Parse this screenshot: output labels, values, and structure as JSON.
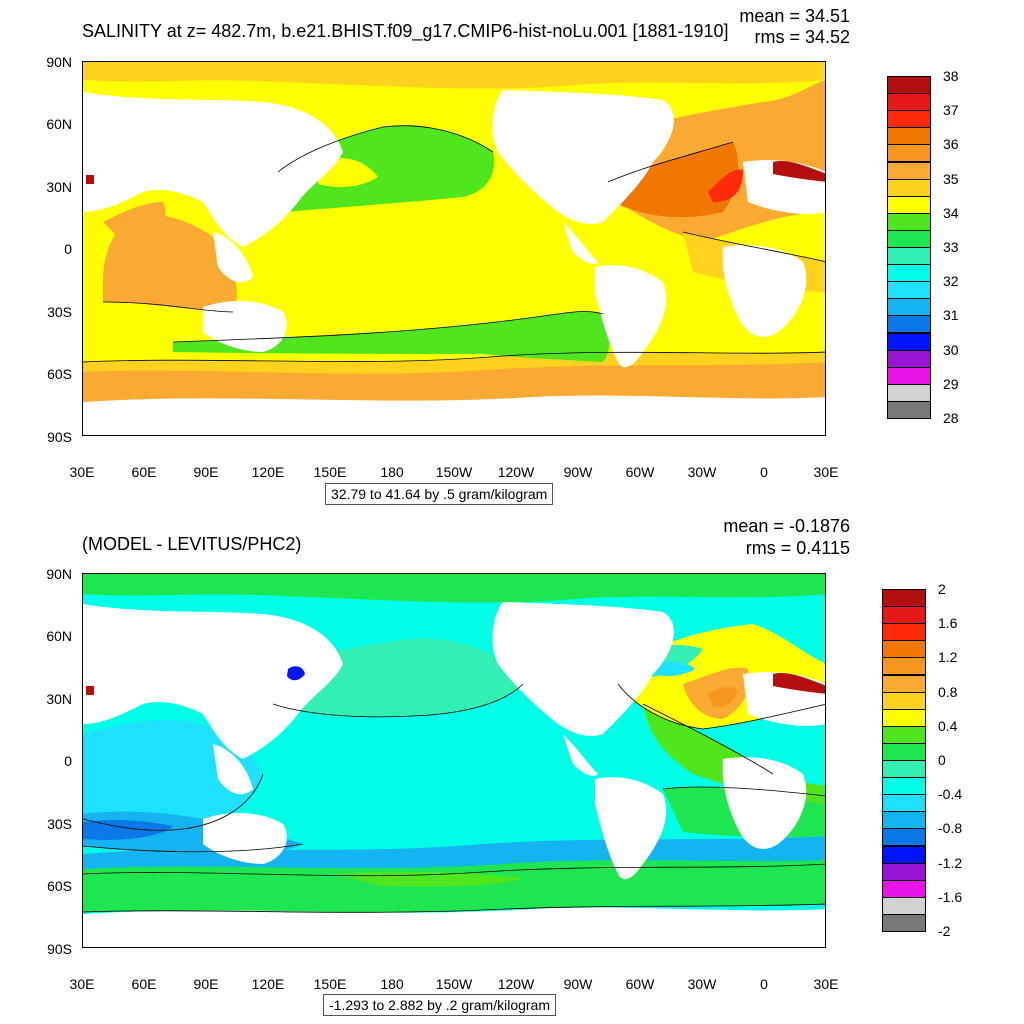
{
  "top": {
    "title": "SALINITY at z= 482.7m, b.e21.BHIST.f09_g17.CMIP6-hist-noLu.001 [1881-1910]",
    "mean": "mean = 34.51",
    "rms": "rms = 34.52",
    "footer": "32.79 to 41.64 by .5 gram/kilogram",
    "colorbar_labels": [
      "38",
      "37",
      "36",
      "35",
      "34",
      "33",
      "32",
      "31",
      "30",
      "29",
      "28"
    ],
    "colorbar_colors": [
      "#b40f0f",
      "#e61919",
      "#ff2a0a",
      "#f07800",
      "#f5961e",
      "#faaa32",
      "#ffd21e",
      "#ffff00",
      "#50e61e",
      "#1ee650",
      "#32f0b4",
      "#00ffe6",
      "#1ee1ff",
      "#14b4f0",
      "#0a78e6",
      "#0014ff",
      "#9614d2",
      "#e614e6",
      "#d2d2d2",
      "#787878"
    ]
  },
  "bottom": {
    "title": "(MODEL - LEVITUS/PHC2)",
    "mean": "mean = -0.1876",
    "rms": "rms = 0.4115",
    "footer": "-1.293 to 2.882 by .2 gram/kilogram",
    "colorbar_labels": [
      "2",
      "1.6",
      "1.2",
      "0.8",
      "0.4",
      "0",
      "-0.4",
      "-0.8",
      "-1.2",
      "-1.6",
      "-2"
    ],
    "colorbar_colors": [
      "#b40f0f",
      "#e61919",
      "#ff2a0a",
      "#f07800",
      "#f5961e",
      "#faaa32",
      "#ffd21e",
      "#ffff00",
      "#50e61e",
      "#1ee650",
      "#32f0b4",
      "#00ffe6",
      "#1ee1ff",
      "#14b4f0",
      "#0a78e6",
      "#0014ff",
      "#9614d2",
      "#e614e6",
      "#d2d2d2",
      "#787878"
    ]
  },
  "axes": {
    "lat_labels": [
      "90N",
      "60N",
      "30N",
      "0",
      "30S",
      "60S",
      "90S"
    ],
    "lon_labels": [
      "30E",
      "60E",
      "90E",
      "120E",
      "150E",
      "180",
      "150W",
      "120W",
      "90W",
      "60W",
      "30W",
      "0",
      "30E"
    ]
  }
}
